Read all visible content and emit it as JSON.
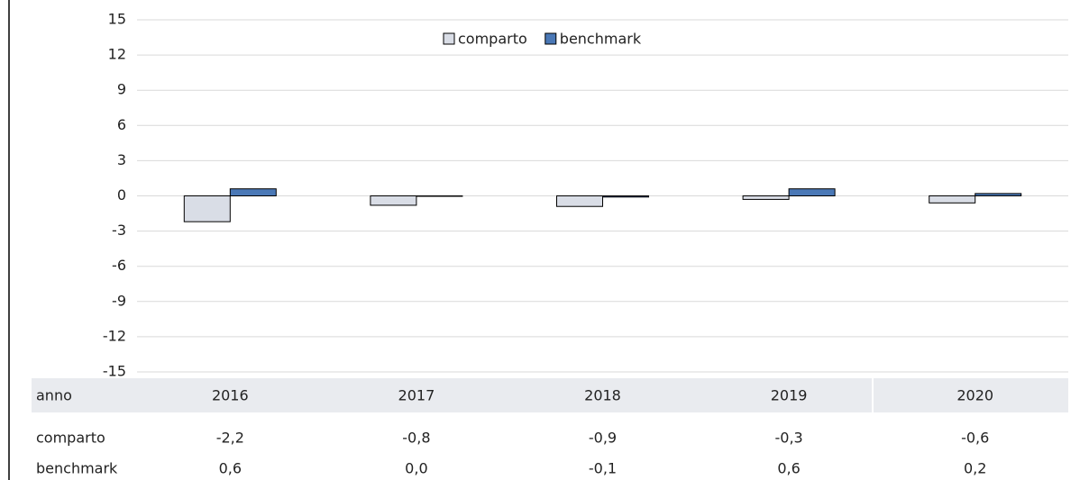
{
  "chart_data": {
    "type": "bar",
    "categories": [
      "2016",
      "2017",
      "2018",
      "2019",
      "2020"
    ],
    "series": [
      {
        "name": "comparto",
        "color": "#d9dde6",
        "values": [
          -2.2,
          -0.8,
          -0.9,
          -0.3,
          -0.6
        ],
        "value_labels": [
          "-2,2",
          "-0,8",
          "-0,9",
          "-0,3",
          "-0,6"
        ]
      },
      {
        "name": "benchmark",
        "color": "#4a78b6",
        "values": [
          0.6,
          0.0,
          -0.1,
          0.6,
          0.2
        ],
        "value_labels": [
          "0,6",
          "0,0",
          "-0,1",
          "0,6",
          "0,2"
        ]
      }
    ],
    "table_header": "anno",
    "ylim": [
      -15,
      15
    ],
    "yticks": [
      15,
      12,
      9,
      6,
      3,
      0,
      -3,
      -6,
      -9,
      -12,
      -15
    ],
    "grid": true,
    "legend": "top"
  }
}
